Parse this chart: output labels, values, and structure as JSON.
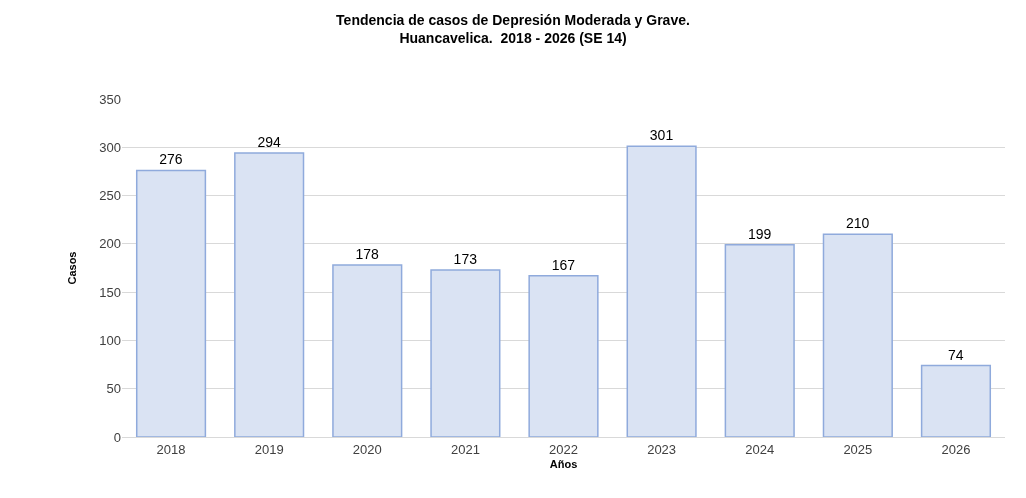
{
  "chart_data": {
    "type": "bar",
    "title": "Tendencia de casos de Depresión Moderada y Grave.\nHuancavelica.  2018 - 2026 (SE 14)",
    "xlabel": "Años",
    "ylabel": "Casos",
    "categories": [
      "2018",
      "2019",
      "2020",
      "2021",
      "2022",
      "2023",
      "2024",
      "2025",
      "2026"
    ],
    "values": [
      276,
      294,
      178,
      173,
      167,
      301,
      199,
      210,
      74
    ],
    "color": "#dae3f3",
    "ylim": [
      0,
      350
    ],
    "yticks": [
      0,
      50,
      100,
      150,
      200,
      250,
      300,
      350
    ],
    "grid": "y",
    "data_labels": true
  }
}
